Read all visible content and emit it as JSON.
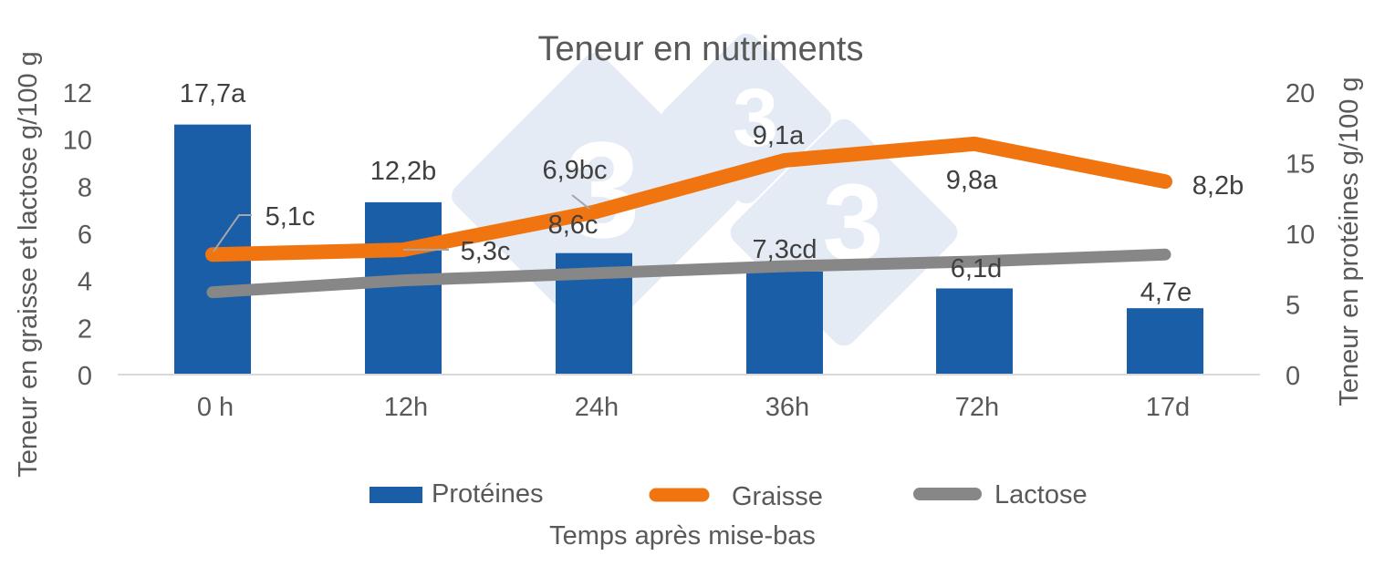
{
  "chart_data": {
    "type": "bar+line (dual axis)",
    "title": "Teneur en nutriments",
    "xlabel": "Temps après mise-bas",
    "ylabel_left": "Teneur en graisse et lactose g/100 g",
    "ylabel_right": "Teneur en protéines g/100 g",
    "categories": [
      "0 h",
      "12h",
      "24h",
      "36h",
      "72h",
      "17d"
    ],
    "ylim_left": [
      0,
      12
    ],
    "yticks_left": [
      0,
      2,
      4,
      6,
      8,
      10,
      12
    ],
    "ylim_right": [
      0,
      20
    ],
    "yticks_right": [
      0,
      5,
      10,
      15,
      20
    ],
    "grid": false,
    "legend_position": "bottom",
    "series": [
      {
        "name": "Protéines",
        "type": "bar",
        "axis": "right",
        "color": "#1a5ea8",
        "values": [
          17.7,
          12.2,
          8.6,
          7.3,
          6.1,
          4.7
        ],
        "labels": [
          "17,7a",
          "12,2b",
          "8,6c",
          "7,3cd",
          "6,1d",
          "4,7e"
        ]
      },
      {
        "name": "Graisse",
        "type": "line",
        "axis": "left",
        "color": "#f07410",
        "values": [
          5.1,
          5.3,
          6.9,
          9.1,
          9.8,
          8.2
        ],
        "labels": [
          "5,1c",
          "5,3c",
          "6,9bc",
          "9,1a",
          "9,8a",
          "8,2b"
        ]
      },
      {
        "name": "Lactose",
        "type": "line",
        "axis": "left",
        "color": "#878787",
        "values": [
          3.5,
          4.0,
          4.3,
          4.6,
          4.8,
          5.1
        ],
        "labels": []
      }
    ]
  },
  "colors": {
    "text": "#595959",
    "label_text": "#404040",
    "axis_line": "#d9d9d9",
    "watermark": "#e4ebf4"
  }
}
